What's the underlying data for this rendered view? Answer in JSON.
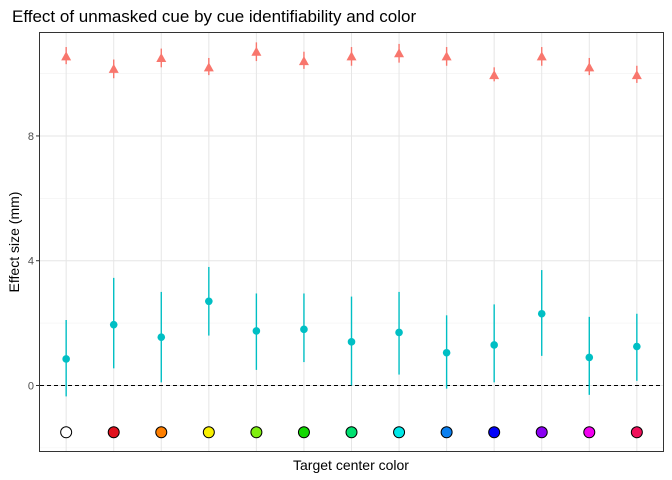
{
  "chart_data": {
    "type": "scatter",
    "title": "Effect of unmasked cue by cue identifiability and color",
    "xlabel": "Target center color",
    "ylabel": "Effect size (mm)",
    "ylim": [
      -2.1,
      11.3
    ],
    "yticks": [
      0,
      4,
      8
    ],
    "grid": true,
    "legend": "none",
    "reference_line": {
      "y": 0,
      "style": "dashed"
    },
    "colors": [
      "#FFFFFF",
      "#E0101C",
      "#FF7F00",
      "#F8F000",
      "#7FEE10",
      "#12D800",
      "#00E070",
      "#00E8E8",
      "#0A7FF0",
      "#0000F8",
      "#8A00F2",
      "#F200F0",
      "#F0105A"
    ],
    "series": [
      {
        "marker": "triangle",
        "color": "#F8766D",
        "y": [
          10.55,
          10.15,
          10.5,
          10.2,
          10.7,
          10.4,
          10.55,
          10.65,
          10.55,
          9.95,
          10.55,
          10.2,
          9.95
        ],
        "ymin": [
          10.3,
          9.85,
          10.2,
          9.95,
          10.4,
          10.15,
          10.25,
          10.35,
          10.25,
          9.75,
          10.25,
          9.95,
          9.7
        ],
        "ymax": [
          10.85,
          10.45,
          10.8,
          10.5,
          11.0,
          10.7,
          10.85,
          10.95,
          10.85,
          10.2,
          10.85,
          10.5,
          10.25
        ]
      },
      {
        "marker": "circle",
        "color": "#00BFC4",
        "y": [
          0.85,
          1.95,
          1.55,
          2.7,
          1.75,
          1.8,
          1.4,
          1.7,
          1.05,
          1.3,
          2.3,
          0.9,
          1.25
        ],
        "ymin": [
          -0.35,
          0.55,
          0.1,
          1.6,
          0.5,
          0.75,
          0.0,
          0.35,
          -0.1,
          0.1,
          0.95,
          -0.3,
          0.15
        ],
        "ymax": [
          2.1,
          3.45,
          3.0,
          3.8,
          2.95,
          2.95,
          2.85,
          3.0,
          2.25,
          2.6,
          3.7,
          2.2,
          2.3
        ]
      }
    ],
    "swatch_y": -1.5
  }
}
